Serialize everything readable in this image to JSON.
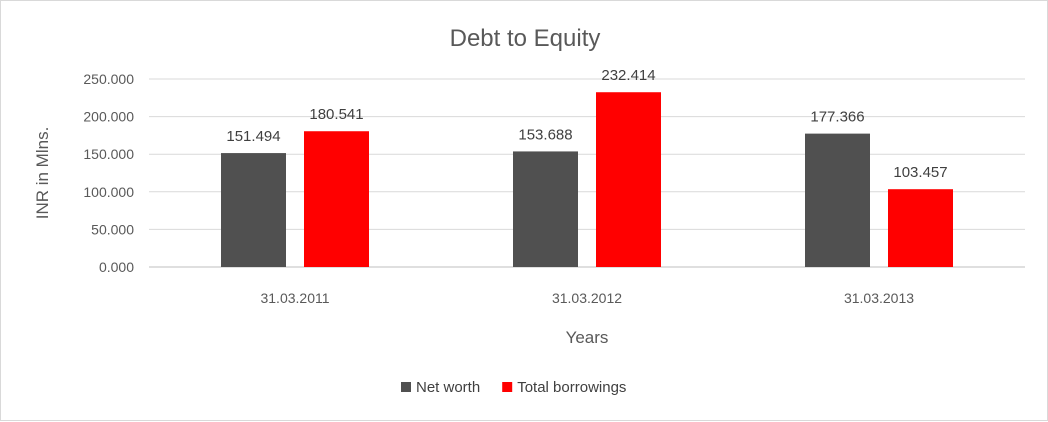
{
  "chart_data": {
    "type": "bar",
    "title": "Debt to Equity",
    "xlabel": "Years",
    "ylabel": "INR in Mlns.",
    "categories": [
      "31.03.2011",
      "31.03.2012",
      "31.03.2013"
    ],
    "series": [
      {
        "name": "Net worth",
        "color": "#505050",
        "values": [
          151.494,
          153.688,
          177.366
        ]
      },
      {
        "name": "Total borrowings",
        "color": "#ff0000",
        "values": [
          180.541,
          232.414,
          103.457
        ]
      }
    ],
    "ylim": [
      0,
      250
    ],
    "yticks": [
      0,
      50,
      100,
      150,
      200,
      250
    ],
    "ytick_labels": [
      "0.000",
      "50.000",
      "100.000",
      "150.000",
      "200.000",
      "250.000"
    ],
    "grid": true,
    "legend_position": "bottom"
  }
}
